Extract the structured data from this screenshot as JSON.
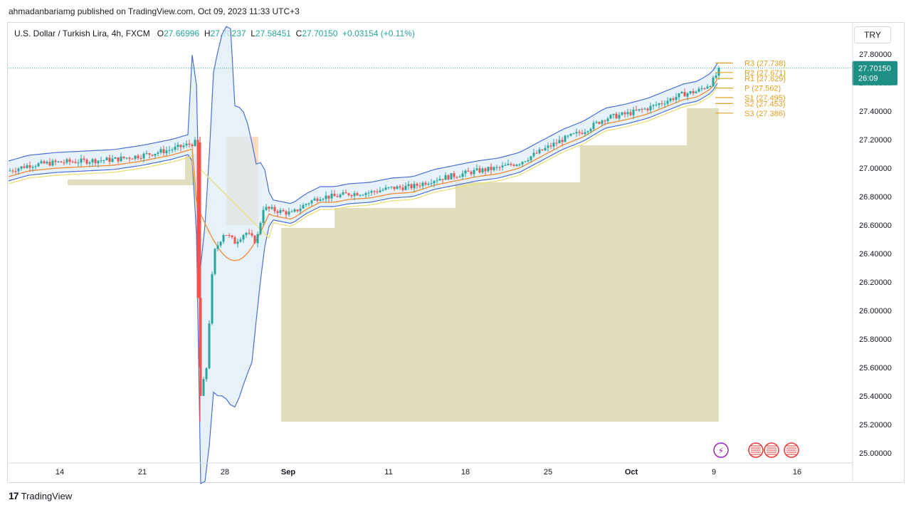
{
  "published": "ahmadanbariamg published on TradingView.com, Oct 09, 2023 11:33 UTC+3",
  "header": {
    "symbol": "U.S. Dollar / Turkish Lira, 4h, FXCM",
    "o_label": "O",
    "o_value": "27.66996",
    "h_label": "H",
    "h_value": "27.70237",
    "l_label": "L",
    "l_value": "27.58451",
    "c_label": "C",
    "c_value": "27.70150",
    "change": "+0.03154 (+0.11%)"
  },
  "currency": "TRY",
  "price_tag": {
    "price": "27.70150",
    "countdown": "26:09"
  },
  "footer": {
    "brand": "TradingView"
  },
  "colors": {
    "up": "#26a69a",
    "down": "#ef5350",
    "bands": "#4a6fd6",
    "band_fill": "#dcebf8",
    "ema_orange": "#f08a30",
    "ema_yellow": "#e6e07a",
    "olive_fill": "#d9d6ac",
    "peach_fill": "#f7d6b8",
    "pivot": "#e0a020"
  },
  "chart_data": {
    "type": "candlestick",
    "title": "U.S. Dollar / Turkish Lira, 4h, FXCM",
    "ylim": [
      24.93,
      27.88
    ],
    "y_ticks": [
      "27.80000",
      "27.60000",
      "27.40000",
      "27.20000",
      "27.00000",
      "26.80000",
      "26.60000",
      "26.40000",
      "26.20000",
      "26.00000",
      "25.80000",
      "25.60000",
      "25.40000",
      "25.20000",
      "25.00000"
    ],
    "x_ticks": [
      "14",
      "21",
      "28",
      "Sep",
      "11",
      "18",
      "25",
      "Oct",
      "9",
      "16"
    ],
    "pivots": [
      {
        "label": "R3 (27.738)",
        "value": 27.738
      },
      {
        "label": "R2 (27.671)",
        "value": 27.671
      },
      {
        "label": "R1 (27.629)",
        "value": 27.629
      },
      {
        "label": "P (27.562)",
        "value": 27.562
      },
      {
        "label": "S1 (27.495)",
        "value": 27.495
      },
      {
        "label": "S2 (27.453)",
        "value": 27.453
      },
      {
        "label": "S3 (27.386)",
        "value": 27.386
      }
    ],
    "last_price": 27.7015
  }
}
